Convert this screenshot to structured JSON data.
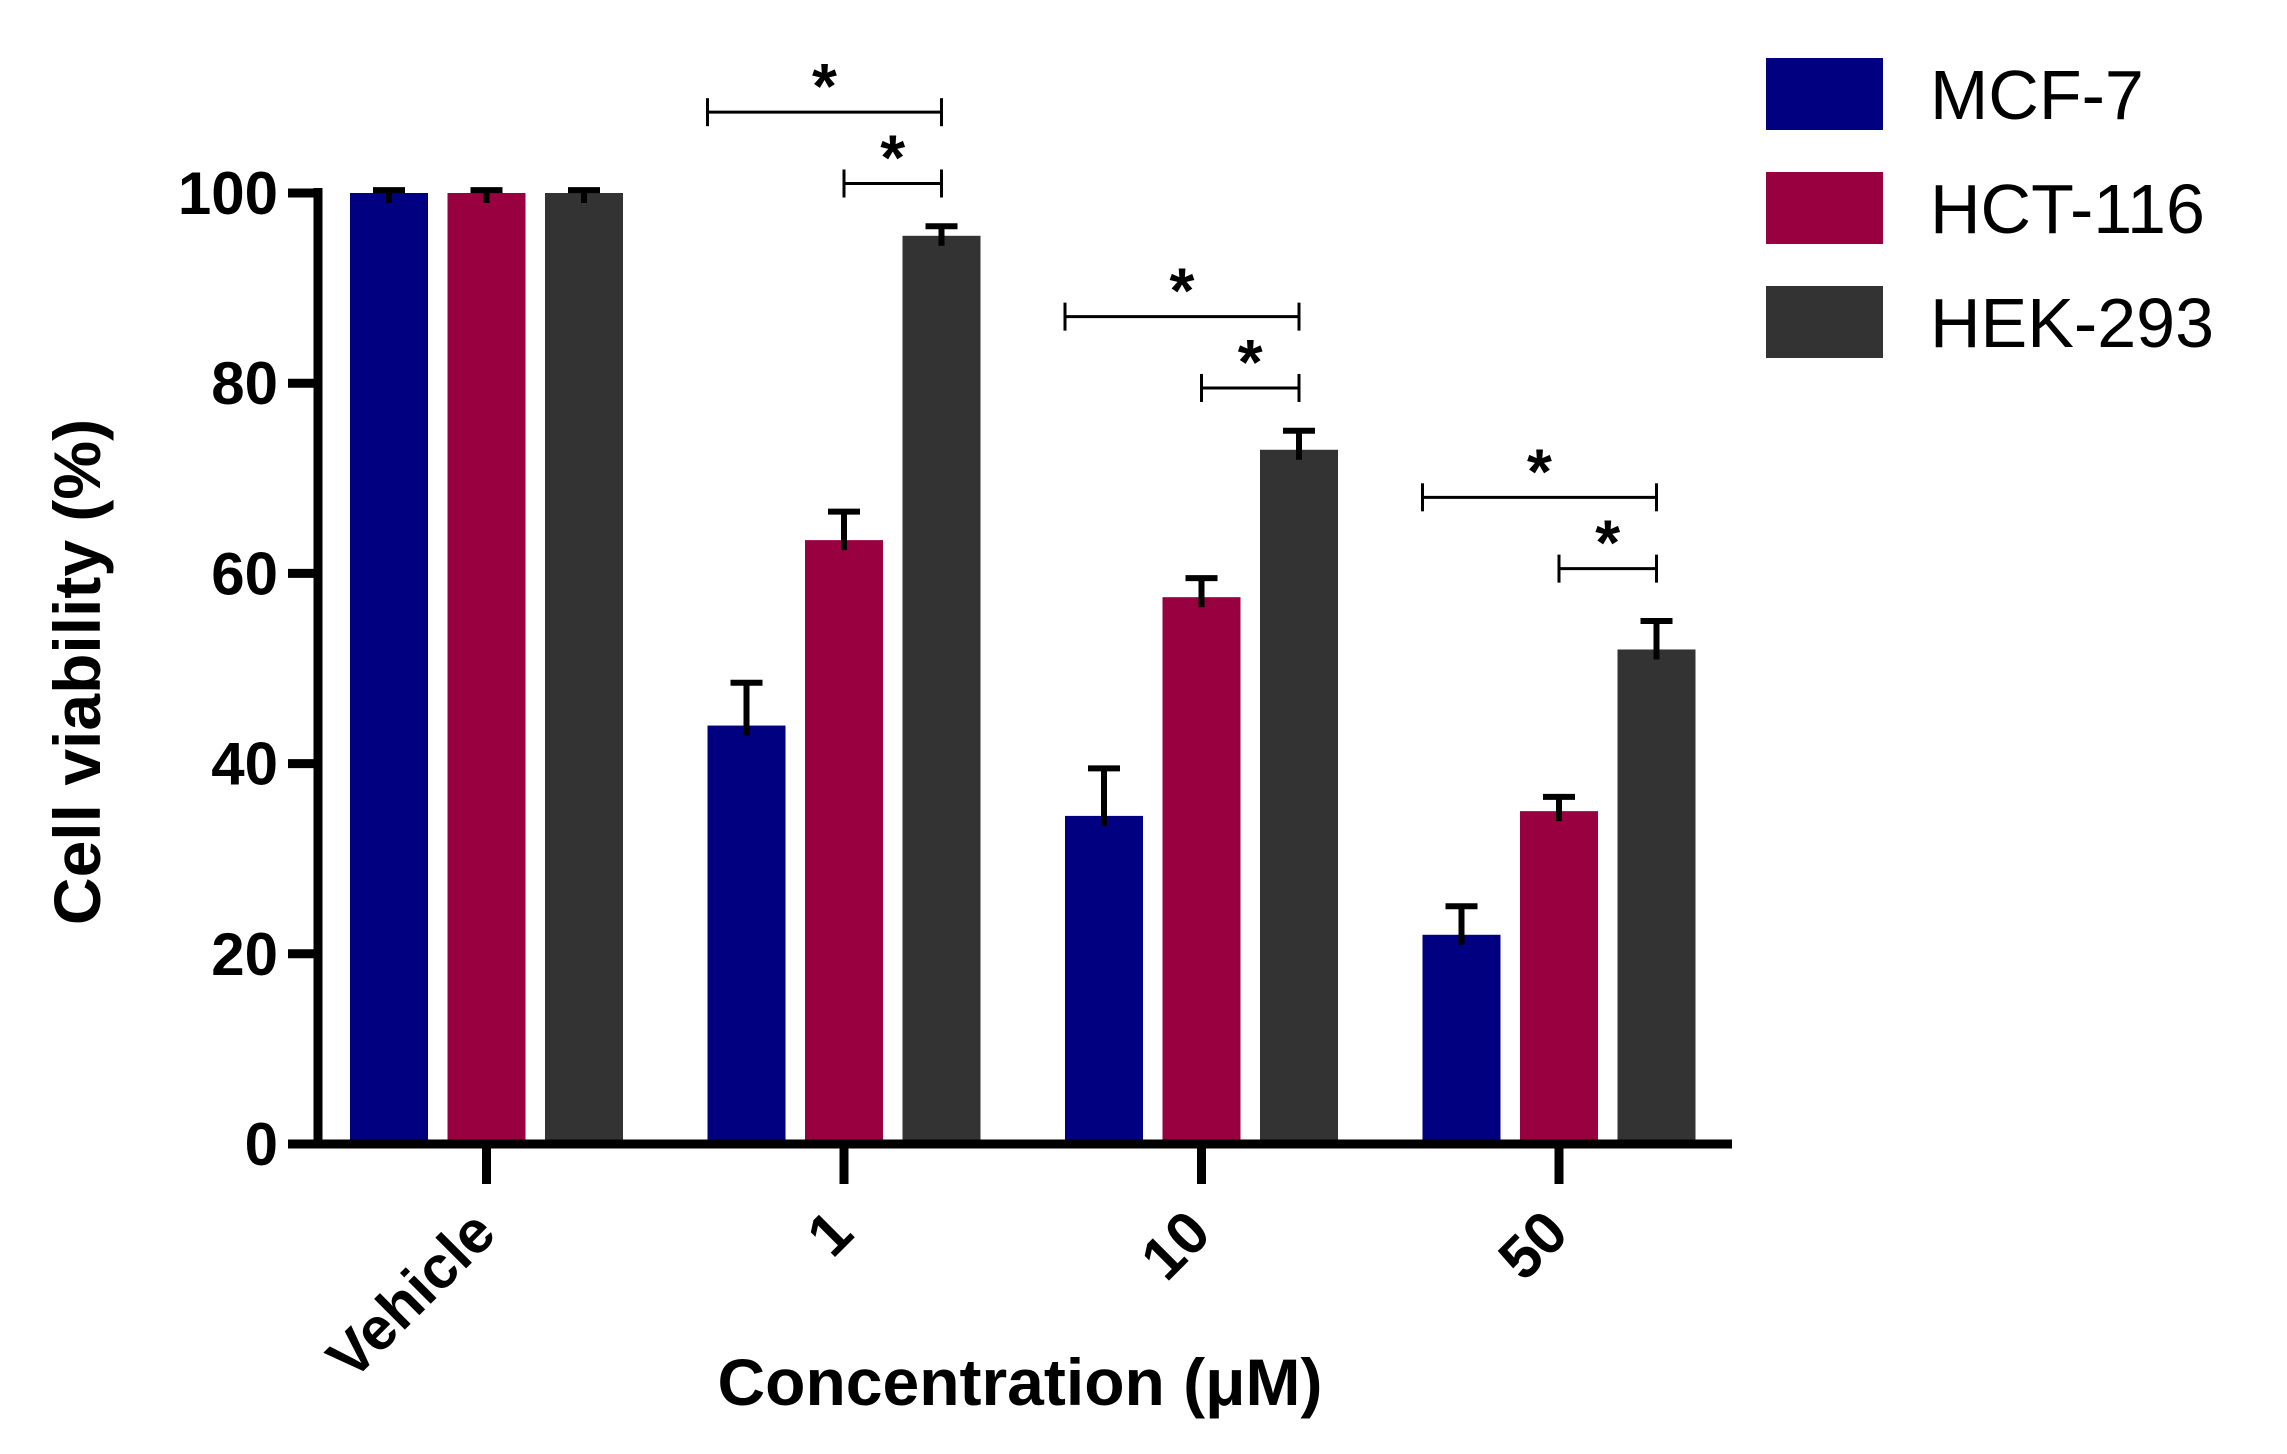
{
  "chart_data": {
    "type": "bar",
    "title": "",
    "xlabel": "Concentration (μM)",
    "ylabel": "Cell viability (%)",
    "ylim": [
      0,
      100
    ],
    "yticks": [
      "0",
      "20",
      "40",
      "60",
      "80",
      "100"
    ],
    "categories": [
      "Vehicle",
      "1",
      "10",
      "50"
    ],
    "series": [
      {
        "name": "MCF-7",
        "color": "#000080",
        "values": [
          100,
          44,
          34.5,
          22
        ],
        "errors": [
          0.3,
          4.5,
          5,
          3
        ]
      },
      {
        "name": "HCT-116",
        "color": "#990040",
        "values": [
          100,
          63.5,
          57.5,
          35
        ],
        "errors": [
          0.3,
          3,
          2,
          1.5
        ]
      },
      {
        "name": "HEK-293",
        "color": "#333333",
        "values": [
          100,
          95.5,
          73,
          52
        ],
        "errors": [
          0.3,
          1,
          2,
          3
        ]
      }
    ],
    "legend": {
      "position": "top-right"
    },
    "significance": [
      {
        "category": "1",
        "from": "MCF-7",
        "to": "HEK-293",
        "label": "*",
        "y": 108.5
      },
      {
        "category": "1",
        "from": "HCT-116",
        "to": "HEK-293",
        "label": "*",
        "y": 101
      },
      {
        "category": "10",
        "from": "MCF-7",
        "to": "HEK-293",
        "label": "*",
        "y": 87
      },
      {
        "category": "10",
        "from": "HCT-116",
        "to": "HEK-293",
        "label": "*",
        "y": 79.5
      },
      {
        "category": "50",
        "from": "MCF-7",
        "to": "HEK-293",
        "label": "*",
        "y": 68
      },
      {
        "category": "50",
        "from": "HCT-116",
        "to": "HEK-293",
        "label": "*",
        "y": 60.5
      }
    ]
  }
}
